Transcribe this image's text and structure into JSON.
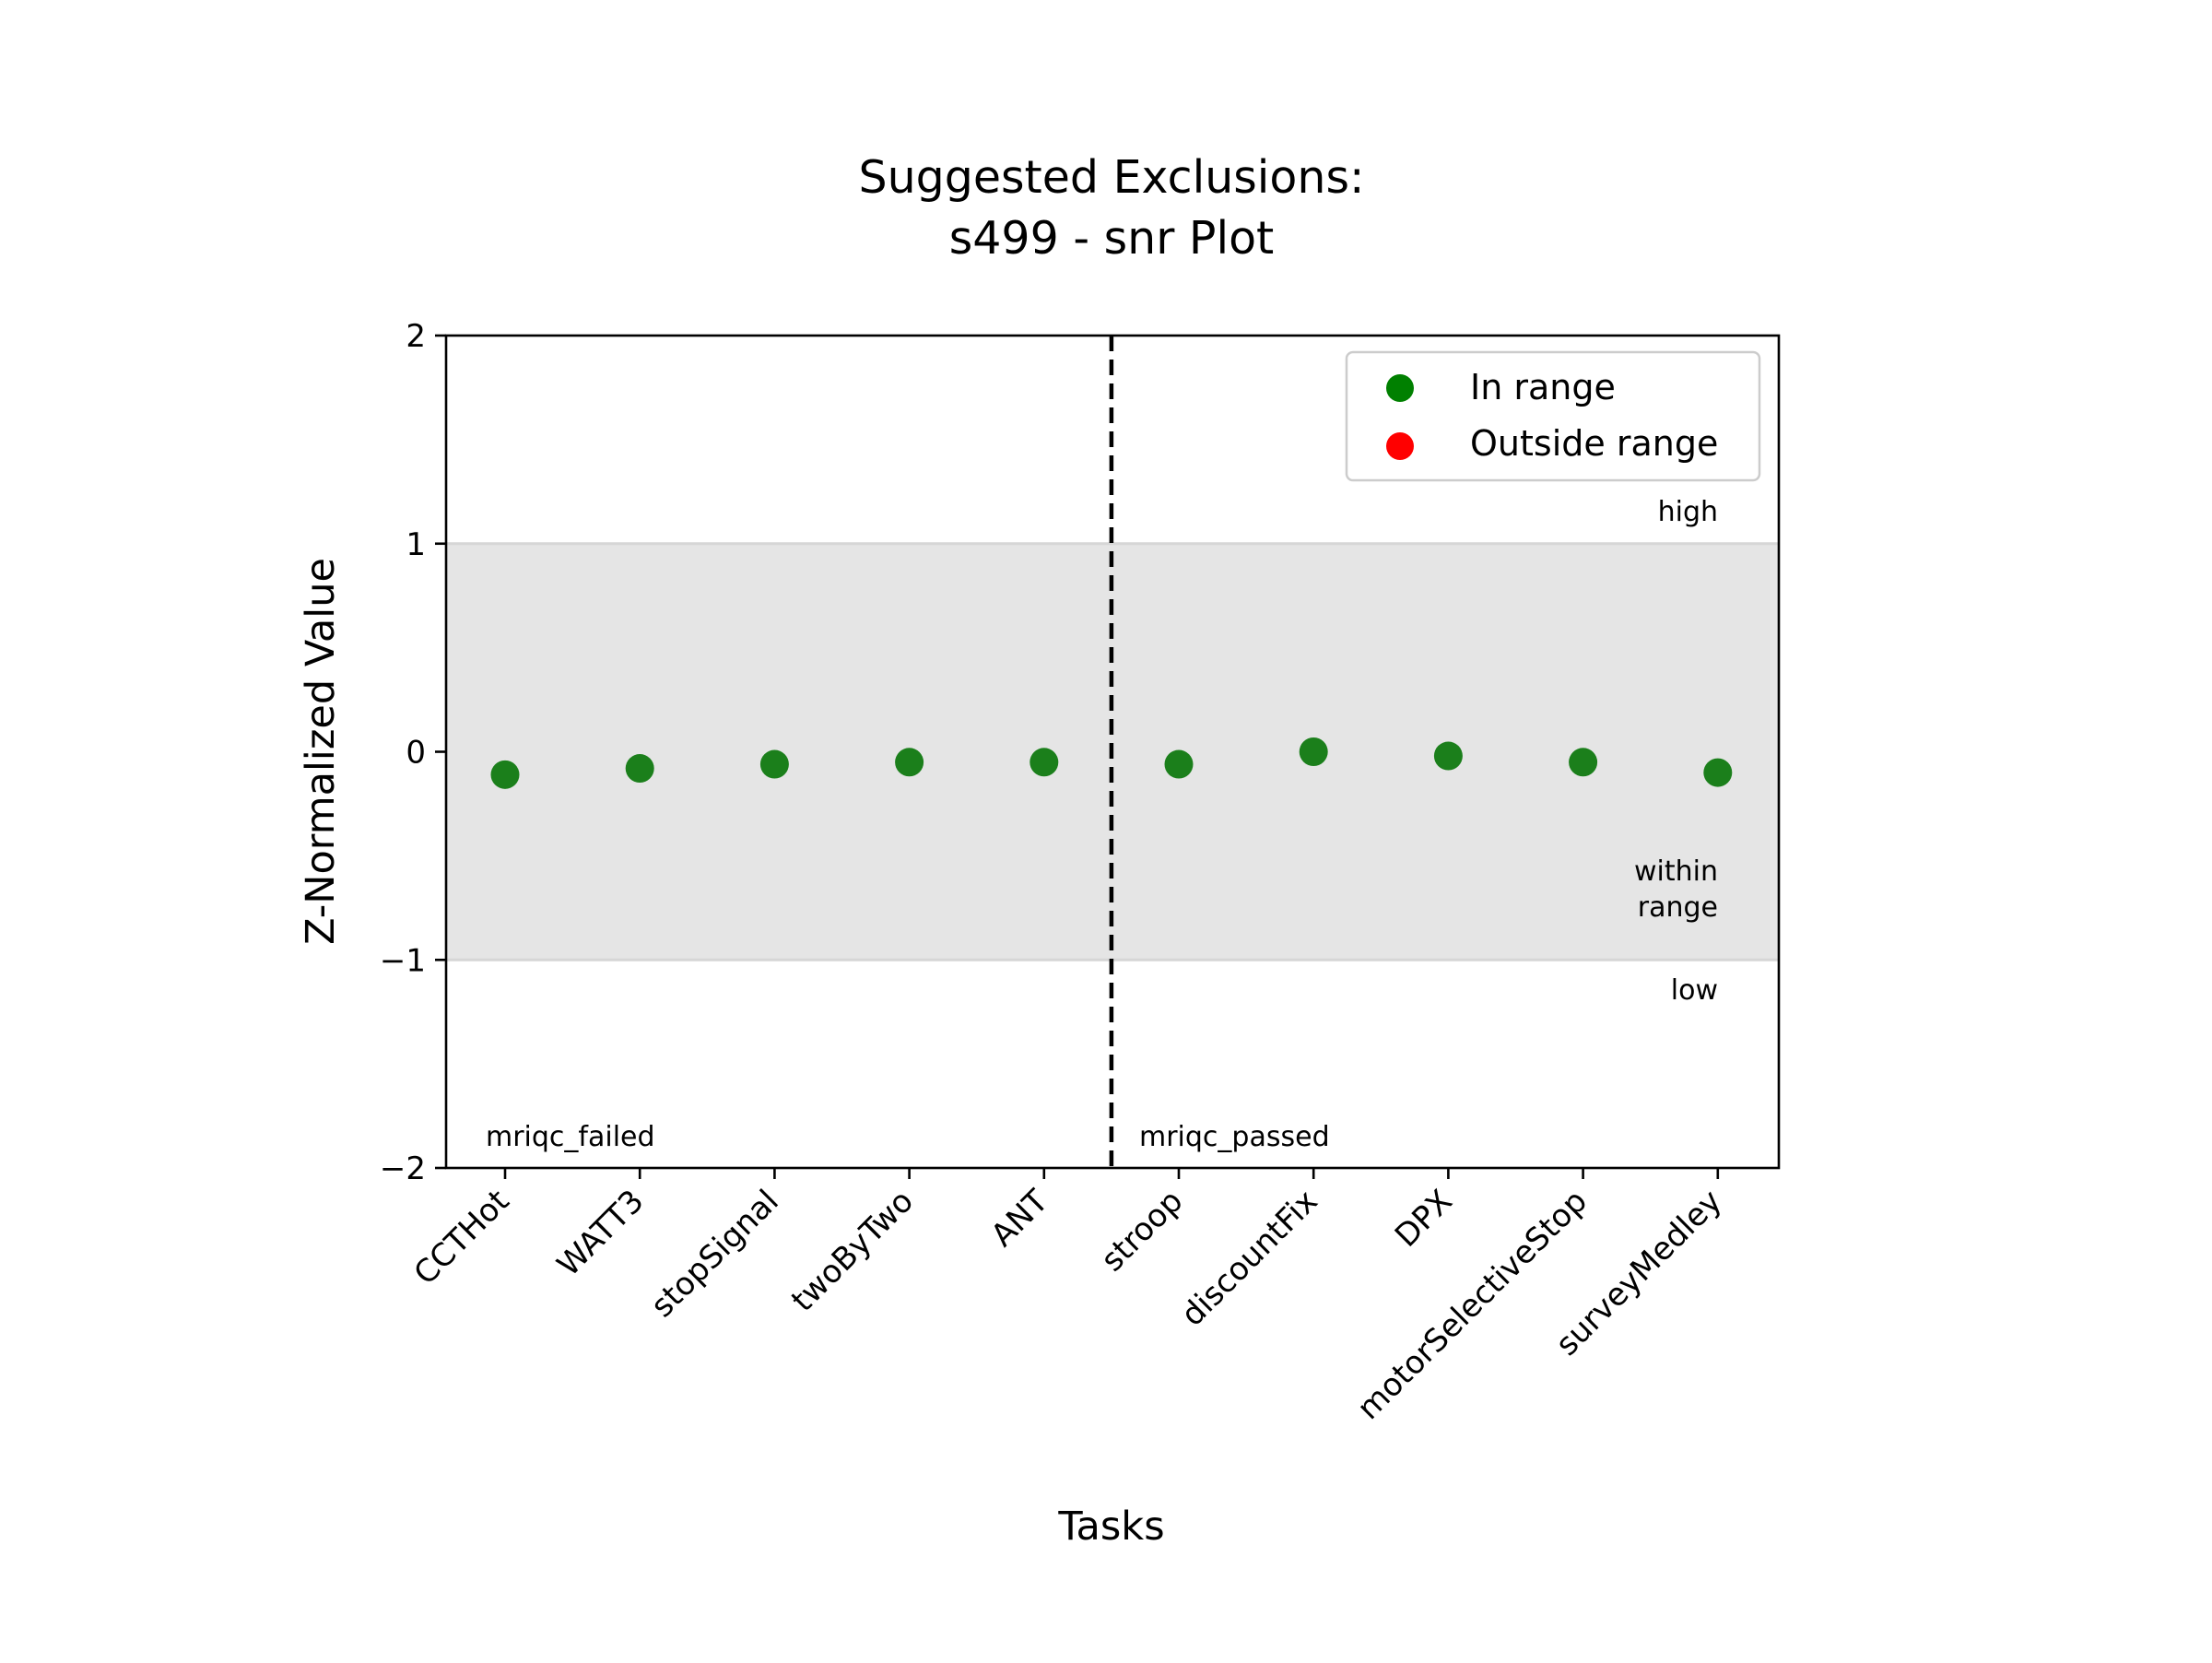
{
  "chart_data": {
    "type": "scatter",
    "title_lines": [
      "Suggested Exclusions:",
      "s499 - snr Plot"
    ],
    "xlabel": "Tasks",
    "ylabel": "Z-Normalized Value",
    "ylim": [
      -2,
      2
    ],
    "yticks": [
      2,
      1,
      0,
      -1,
      -2
    ],
    "ytick_labels": [
      "2",
      "1",
      "0",
      "−1",
      "−2"
    ],
    "grid": false,
    "categories": [
      "CCTHot",
      "WATT3",
      "stopSignal",
      "twoByTwo",
      "ANT",
      "stroop",
      "discountFix",
      "DPX",
      "motorSelectiveStop",
      "surveyMedley"
    ],
    "series": [
      {
        "name": "In range",
        "color": "#1b7f1b",
        "values": [
          -0.11,
          -0.08,
          -0.06,
          -0.05,
          -0.05,
          -0.06,
          0.0,
          -0.02,
          -0.05,
          -0.1
        ]
      },
      {
        "name": "Outside range",
        "color": "#ff0000",
        "values": []
      }
    ],
    "range_band": {
      "low": -1,
      "high": 1,
      "color": "#e5e5e5",
      "edge_color": "#d6d6d6"
    },
    "divider_after_category_index": 4,
    "region_annotations": {
      "high": "high",
      "within": [
        "within",
        "range"
      ],
      "low": "low"
    },
    "group_labels": {
      "left": "mriqc_failed",
      "right": "mriqc_passed"
    },
    "legend": {
      "position": "top-right",
      "entries": [
        {
          "label": "In range",
          "color": "#008000"
        },
        {
          "label": "Outside range",
          "color": "#ff0000"
        }
      ]
    }
  }
}
